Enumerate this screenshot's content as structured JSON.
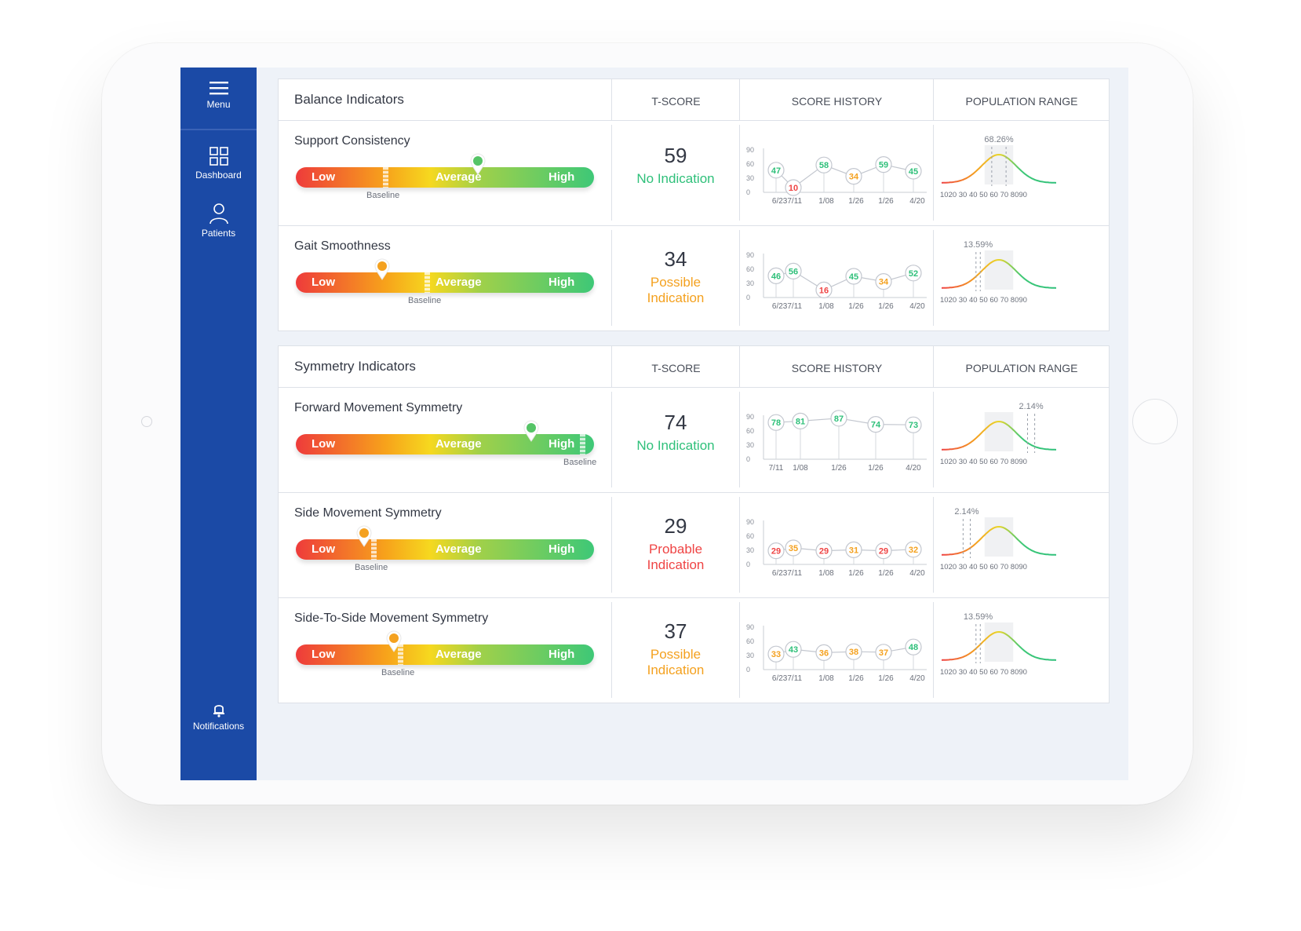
{
  "colors": {
    "sidebar": "#1b4aa6",
    "green": "#2fc07a",
    "orange": "#f4a11f",
    "red": "#ef4444"
  },
  "sidebar": {
    "menu_label": "Menu",
    "items": [
      {
        "label": "Dashboard",
        "icon": "dashboard-icon"
      },
      {
        "label": "Patients",
        "icon": "user-icon"
      }
    ],
    "notifications_label": "Notifications",
    "notifications_icon": "bell-icon"
  },
  "gauge_labels": {
    "low": "Low",
    "average": "Average",
    "high": "High",
    "baseline": "Baseline"
  },
  "x_axis_ticks_default": [
    "6/23",
    "7/11",
    "1/08",
    "1/26",
    "1/26",
    "4/20"
  ],
  "y_axis_ticks": [
    "90",
    "60",
    "30",
    "0"
  ],
  "pop_axis": "1020 30 40 50 60 70 8090",
  "panels": [
    {
      "title": "Balance Indicators",
      "col_tscore": "T-SCORE",
      "col_history": "SCORE HISTORY",
      "col_pop": "POPULATION RANGE",
      "rows": [
        {
          "name": "Support Consistency",
          "tscore": "59",
          "status": "No Indication",
          "status_color": "#2fc07a",
          "gauge_value": 0.61,
          "baseline": 0.3,
          "pin_color": "#55c466",
          "history": [
            47,
            10,
            58,
            34,
            59,
            45
          ],
          "history_colors": [
            "#2fc07a",
            "#ef4444",
            "#2fc07a",
            "#f4a11f",
            "#2fc07a",
            "#2fc07a"
          ],
          "x_ticks": "6/237/11",
          "pop_pct": "68.26%",
          "pop_marker": [
            45,
            55
          ]
        },
        {
          "name": "Gait Smoothness",
          "tscore": "34",
          "status": "Possible Indication",
          "status_color": "#f4a11f",
          "gauge_value": 0.29,
          "baseline": 0.44,
          "pin_color": "#f4a11f",
          "history": [
            46,
            56,
            16,
            45,
            34,
            52
          ],
          "history_colors": [
            "#2fc07a",
            "#2fc07a",
            "#ef4444",
            "#2fc07a",
            "#f4a11f",
            "#2fc07a"
          ],
          "x_ticks": "6/237/11",
          "pop_pct": "13.59%",
          "pop_marker": [
            34,
            37
          ]
        }
      ]
    },
    {
      "title": "Symmetry Indicators",
      "col_tscore": "T-SCORE",
      "col_history": "SCORE HISTORY",
      "col_pop": "POPULATION RANGE",
      "rows": [
        {
          "name": "Forward Movement Symmetry",
          "tscore": "74",
          "status": "No Indication",
          "status_color": "#2fc07a",
          "gauge_value": 0.79,
          "baseline": 0.96,
          "pin_color": "#55c466",
          "history": [
            78,
            81,
            87,
            74,
            73
          ],
          "history_colors": [
            "#2fc07a",
            "#2fc07a",
            "#2fc07a",
            "#2fc07a",
            "#2fc07a"
          ],
          "x_ticks_list": [
            "7/11",
            "1/08",
            "1/26",
            "1/26",
            "4/20"
          ],
          "pop_pct": "2.14%",
          "pop_marker": [
            70,
            75
          ]
        },
        {
          "name": "Side Movement Symmetry",
          "tscore": "29",
          "status": "Probable Indication",
          "status_color": "#ef4444",
          "gauge_value": 0.23,
          "baseline": 0.26,
          "pin_color": "#f4a11f",
          "history": [
            29,
            35,
            29,
            31,
            29,
            32
          ],
          "history_colors": [
            "#ef4444",
            "#f4a11f",
            "#ef4444",
            "#f4a11f",
            "#ef4444",
            "#f4a11f"
          ],
          "x_ticks": "6/237/11",
          "pop_pct": "2.14%",
          "pop_marker": [
            25,
            30
          ]
        },
        {
          "name": "Side-To-Side Movement Symmetry",
          "tscore": "37",
          "status": "Possible Indication",
          "status_color": "#f4a11f",
          "gauge_value": 0.33,
          "baseline": 0.35,
          "pin_color": "#f4a11f",
          "history": [
            33,
            43,
            36,
            38,
            37,
            48
          ],
          "history_colors": [
            "#f4a11f",
            "#2fc07a",
            "#f4a11f",
            "#f4a11f",
            "#f4a11f",
            "#2fc07a"
          ],
          "x_ticks": "6/237/11",
          "pop_pct": "13.59%",
          "pop_marker": [
            34,
            37
          ]
        }
      ]
    }
  ]
}
